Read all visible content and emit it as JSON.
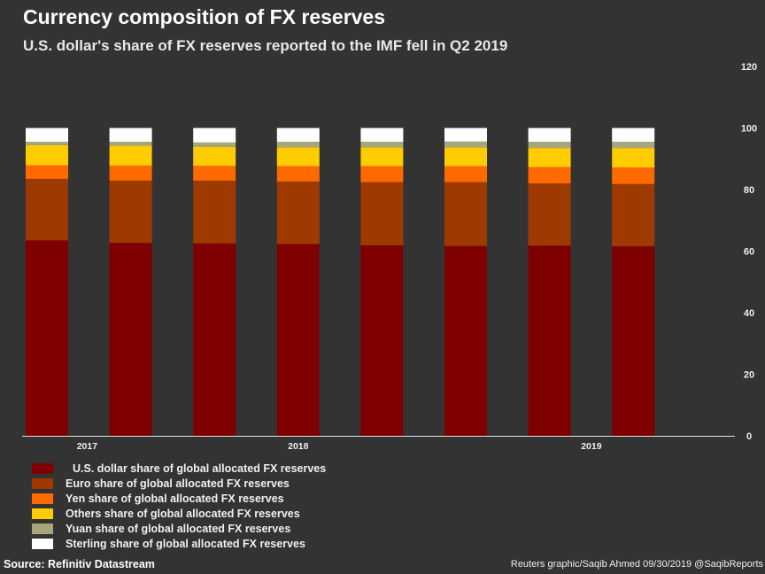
{
  "header": {
    "title": "Currency composition of FX reserves",
    "subtitle": "U.S. dollar's share of FX reserves reported to the IMF fell in Q2 2019"
  },
  "chart_data": {
    "type": "bar",
    "stacked": true,
    "x_tick_labels": [
      "2017",
      "2018",
      "2019"
    ],
    "y_ticks": [
      0,
      20,
      40,
      60,
      80,
      100,
      120
    ],
    "ylim": [
      0,
      120
    ],
    "y_axis_position": "right",
    "grid": false,
    "legend_placement": "bottom-left",
    "series": [
      {
        "name": "U.S. dollar share of global allocated FX reserves",
        "color": "#7f0000",
        "values": [
          63.5,
          62.7,
          62.5,
          62.3,
          61.9,
          61.7,
          61.8,
          61.6
        ]
      },
      {
        "name": "Euro share of global allocated FX reserves",
        "color": "#9e3a00",
        "values": [
          20.0,
          20.2,
          20.4,
          20.3,
          20.5,
          20.7,
          20.2,
          20.2
        ]
      },
      {
        "name": "Yen share of global allocated FX reserves",
        "color": "#ff6a00",
        "values": [
          4.4,
          4.9,
          4.8,
          5.0,
          5.2,
          5.2,
          5.3,
          5.4
        ]
      },
      {
        "name": "Others share of global allocated FX reserves",
        "color": "#ffcc00",
        "values": [
          6.5,
          6.5,
          6.2,
          6.1,
          6.1,
          6.1,
          6.2,
          6.3
        ]
      },
      {
        "name": "Yuan share of global allocated FX reserves",
        "color": "#a8a67a",
        "values": [
          1.1,
          1.2,
          1.4,
          1.8,
          1.8,
          1.9,
          2.0,
          2.0
        ]
      },
      {
        "name": "Sterling share of global allocated FX reserves",
        "color": "#ffffff",
        "values": [
          4.5,
          4.5,
          4.7,
          4.5,
          4.5,
          4.4,
          4.5,
          4.5
        ]
      }
    ]
  },
  "footer": {
    "source": "Source: Refinitiv Datastream",
    "credit": "Reuters graphic/Saqib Ahmed 09/30/2019 @SaqibReports"
  }
}
